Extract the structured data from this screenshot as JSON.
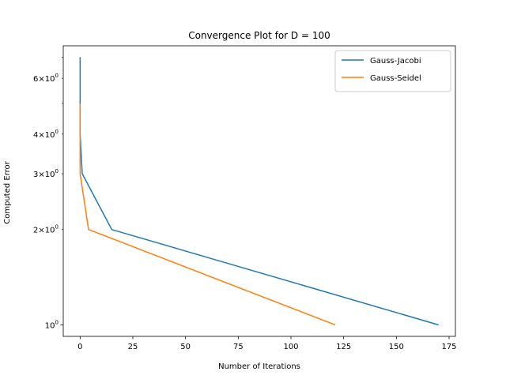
{
  "chart_data": {
    "type": "line",
    "title": "Convergence Plot for D = 100",
    "xlabel": "Number of Iterations",
    "ylabel": "Computed Error",
    "xlim": [
      -8,
      178
    ],
    "ylim": [
      0.92,
      7.6
    ],
    "yscale": "log",
    "grid": false,
    "legend_position": "top-right",
    "x_ticks": [
      {
        "value": 0,
        "label": "0"
      },
      {
        "value": 25,
        "label": "25"
      },
      {
        "value": 50,
        "label": "50"
      },
      {
        "value": 75,
        "label": "75"
      },
      {
        "value": 100,
        "label": "100"
      },
      {
        "value": 125,
        "label": "125"
      },
      {
        "value": 150,
        "label": "150"
      },
      {
        "value": 175,
        "label": "175"
      }
    ],
    "y_major_ticks": [
      {
        "value": 1,
        "label": "10",
        "exp": "0"
      }
    ],
    "y_minor_ticks": [
      {
        "value": 2,
        "label": "2",
        "mult": "×10",
        "exp": "0"
      },
      {
        "value": 3,
        "label": "3",
        "mult": "×10",
        "exp": "0"
      },
      {
        "value": 4,
        "label": "4",
        "mult": "×10",
        "exp": "0"
      },
      {
        "value": 5
      },
      {
        "value": 6,
        "label": "6",
        "mult": "×10",
        "exp": "0"
      },
      {
        "value": 7
      }
    ],
    "series": [
      {
        "name": "Gauss-Jacobi",
        "color": "#1f77b4",
        "x": [
          0,
          0,
          0,
          1,
          15,
          170
        ],
        "y": [
          7,
          5,
          4,
          3,
          2,
          1
        ]
      },
      {
        "name": "Gauss-Seidel",
        "color": "#ff7f0e",
        "x": [
          0,
          0,
          0,
          4,
          121
        ],
        "y": [
          5,
          4,
          3,
          2,
          1
        ]
      }
    ]
  }
}
